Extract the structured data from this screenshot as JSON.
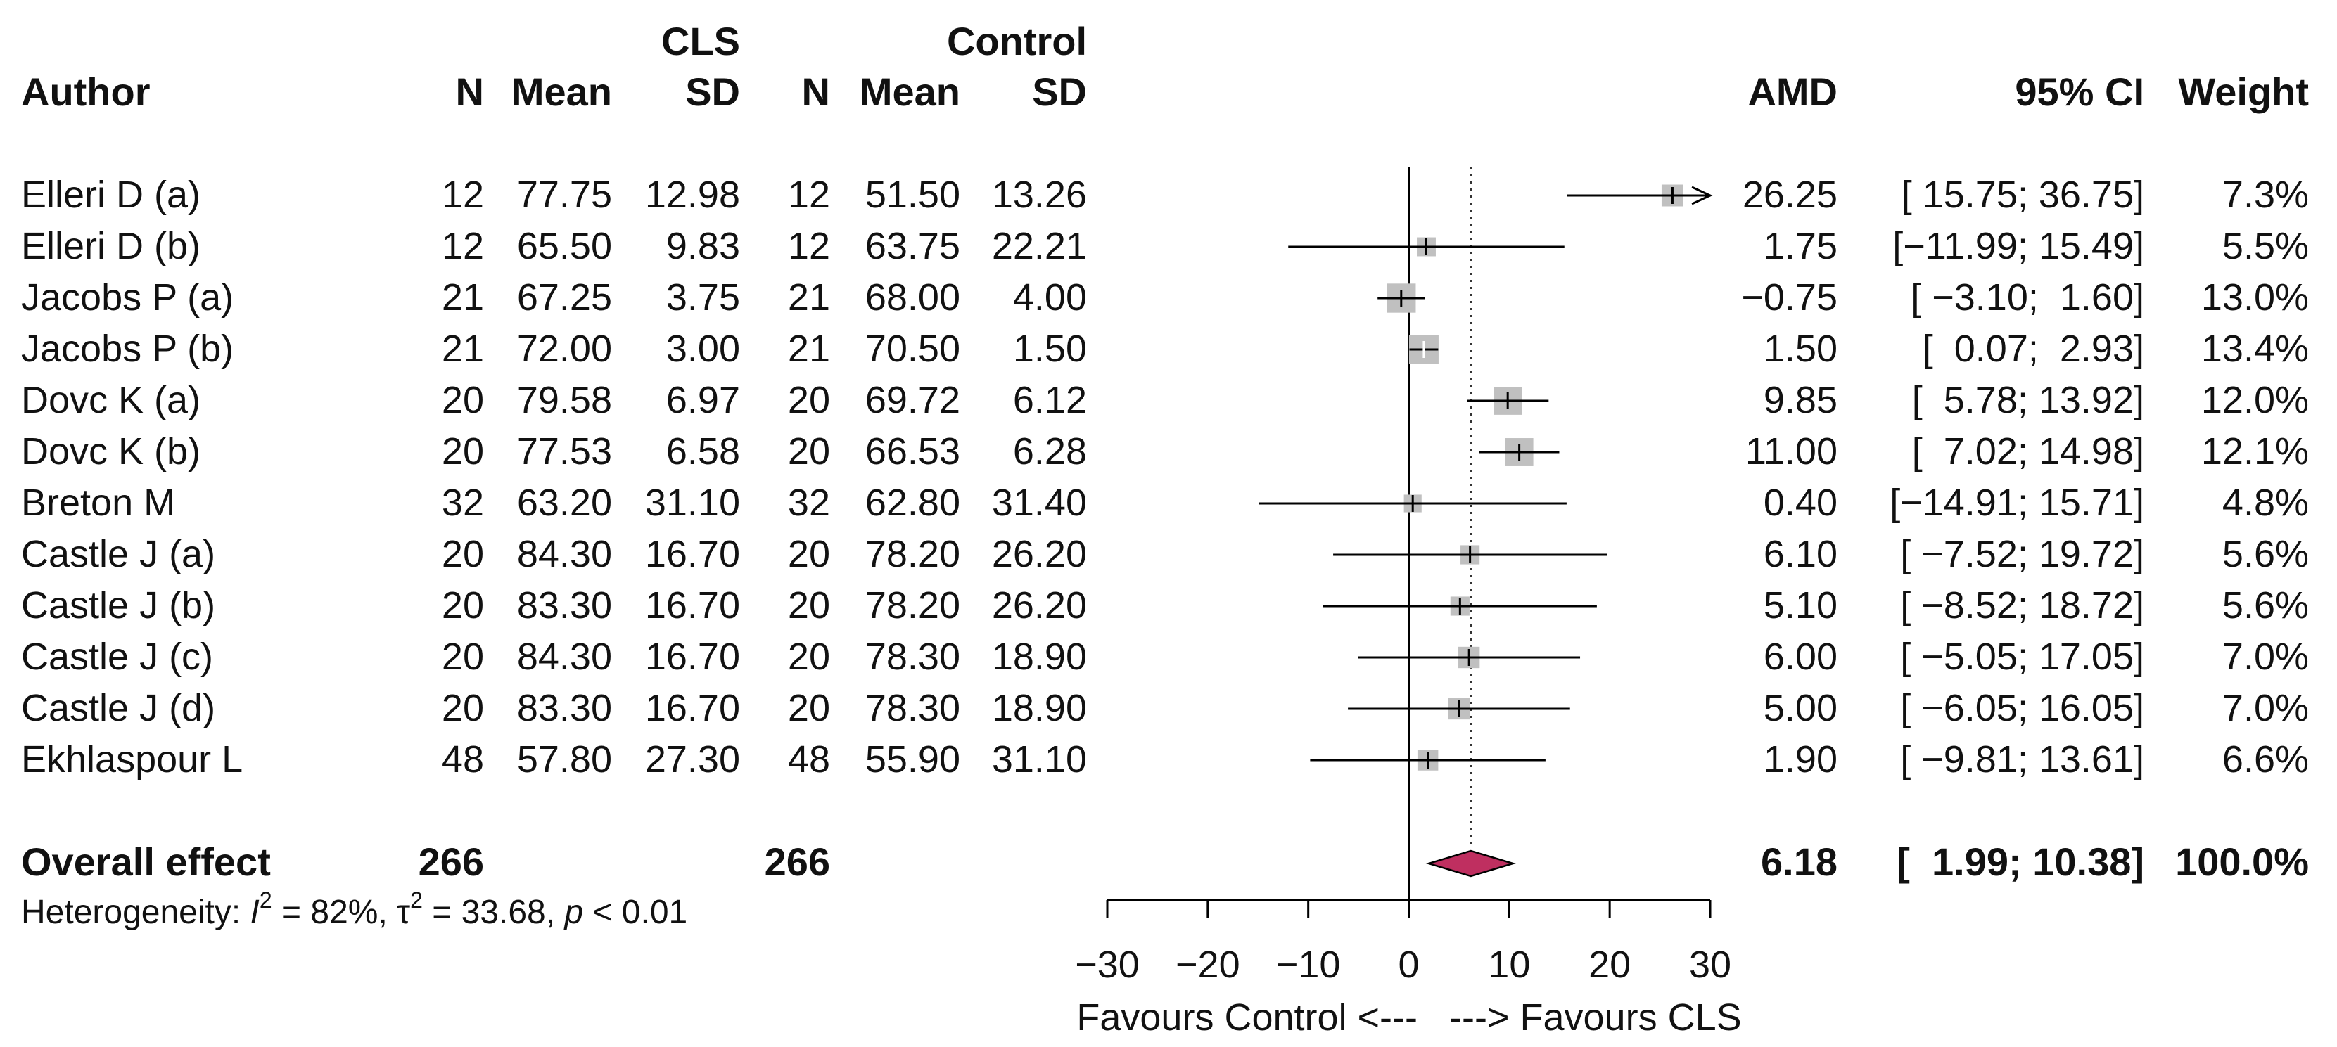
{
  "chart_data": {
    "type": "forest",
    "headers": {
      "group_cls": "CLS",
      "group_control": "Control",
      "author": "Author",
      "n": "N",
      "mean": "Mean",
      "sd": "SD",
      "amd": "AMD",
      "ci": "95% CI",
      "weight": "Weight"
    },
    "studies": [
      {
        "author": "Elleri D (a)",
        "n1": "12",
        "mean1": "77.75",
        "sd1": "12.98",
        "n2": "12",
        "mean2": "51.50",
        "sd2": "13.26",
        "amd": "26.25",
        "ci": "[ 15.75; 36.75]",
        "weight": "7.3%",
        "est": 26.25,
        "lo": 15.75,
        "hi": 36.75,
        "w": 7.3
      },
      {
        "author": "Elleri D (b)",
        "n1": "12",
        "mean1": "65.50",
        "sd1": "9.83",
        "n2": "12",
        "mean2": "63.75",
        "sd2": "22.21",
        "amd": "1.75",
        "ci": "[−11.99; 15.49]",
        "weight": "5.5%",
        "est": 1.75,
        "lo": -11.99,
        "hi": 15.49,
        "w": 5.5
      },
      {
        "author": "Jacobs P (a)",
        "n1": "21",
        "mean1": "67.25",
        "sd1": "3.75",
        "n2": "21",
        "mean2": "68.00",
        "sd2": "4.00",
        "amd": "−0.75",
        "ci": "[ −3.10;  1.60]",
        "weight": "13.0%",
        "est": -0.75,
        "lo": -3.1,
        "hi": 1.6,
        "w": 13.0
      },
      {
        "author": "Jacobs P (b)",
        "n1": "21",
        "mean1": "72.00",
        "sd1": "3.00",
        "n2": "21",
        "mean2": "70.50",
        "sd2": "1.50",
        "amd": "1.50",
        "ci": "[  0.07;  2.93]",
        "weight": "13.4%",
        "est": 1.5,
        "lo": 0.07,
        "hi": 2.93,
        "w": 13.4
      },
      {
        "author": "Dovc K (a)",
        "n1": "20",
        "mean1": "79.58",
        "sd1": "6.97",
        "n2": "20",
        "mean2": "69.72",
        "sd2": "6.12",
        "amd": "9.85",
        "ci": "[  5.78; 13.92]",
        "weight": "12.0%",
        "est": 9.85,
        "lo": 5.78,
        "hi": 13.92,
        "w": 12.0
      },
      {
        "author": "Dovc K (b)",
        "n1": "20",
        "mean1": "77.53",
        "sd1": "6.58",
        "n2": "20",
        "mean2": "66.53",
        "sd2": "6.28",
        "amd": "11.00",
        "ci": "[  7.02; 14.98]",
        "weight": "12.1%",
        "est": 11.0,
        "lo": 7.02,
        "hi": 14.98,
        "w": 12.1
      },
      {
        "author": "Breton M",
        "n1": "32",
        "mean1": "63.20",
        "sd1": "31.10",
        "n2": "32",
        "mean2": "62.80",
        "sd2": "31.40",
        "amd": "0.40",
        "ci": "[−14.91; 15.71]",
        "weight": "4.8%",
        "est": 0.4,
        "lo": -14.91,
        "hi": 15.71,
        "w": 4.8
      },
      {
        "author": "Castle J (a)",
        "n1": "20",
        "mean1": "84.30",
        "sd1": "16.70",
        "n2": "20",
        "mean2": "78.20",
        "sd2": "26.20",
        "amd": "6.10",
        "ci": "[ −7.52; 19.72]",
        "weight": "5.6%",
        "est": 6.1,
        "lo": -7.52,
        "hi": 19.72,
        "w": 5.6
      },
      {
        "author": "Castle J (b)",
        "n1": "20",
        "mean1": "83.30",
        "sd1": "16.70",
        "n2": "20",
        "mean2": "78.20",
        "sd2": "26.20",
        "amd": "5.10",
        "ci": "[ −8.52; 18.72]",
        "weight": "5.6%",
        "est": 5.1,
        "lo": -8.52,
        "hi": 18.72,
        "w": 5.6
      },
      {
        "author": "Castle J (c)",
        "n1": "20",
        "mean1": "84.30",
        "sd1": "16.70",
        "n2": "20",
        "mean2": "78.30",
        "sd2": "18.90",
        "amd": "6.00",
        "ci": "[ −5.05; 17.05]",
        "weight": "7.0%",
        "est": 6.0,
        "lo": -5.05,
        "hi": 17.05,
        "w": 7.0
      },
      {
        "author": "Castle J (d)",
        "n1": "20",
        "mean1": "83.30",
        "sd1": "16.70",
        "n2": "20",
        "mean2": "78.30",
        "sd2": "18.90",
        "amd": "5.00",
        "ci": "[ −6.05; 16.05]",
        "weight": "7.0%",
        "est": 5.0,
        "lo": -6.05,
        "hi": 16.05,
        "w": 7.0
      },
      {
        "author": "Ekhlaspour L",
        "n1": "48",
        "mean1": "57.80",
        "sd1": "27.30",
        "n2": "48",
        "mean2": "55.90",
        "sd2": "31.10",
        "amd": "1.90",
        "ci": "[ −9.81; 13.61]",
        "weight": "6.6%",
        "est": 1.9,
        "lo": -9.81,
        "hi": 13.61,
        "w": 6.6
      }
    ],
    "overall": {
      "label": "Overall effect",
      "n1": "266",
      "n2": "266",
      "amd": "6.18",
      "ci": "[  1.99; 10.38]",
      "weight": "100.0%",
      "est": 6.18,
      "lo": 1.99,
      "hi": 10.38
    },
    "heterogeneity": {
      "prefix": "Heterogeneity: ",
      "i2_symbol": "I",
      "i2_value": " = 82%, ",
      "tau_symbol": "τ",
      "tau_value": " = 33.68, ",
      "p_symbol": "p",
      "p_value": " < 0.01"
    },
    "x_axis": {
      "range": [
        -30,
        30
      ],
      "ticks": [
        -30,
        -20,
        -10,
        0,
        10,
        20,
        30
      ],
      "tick_labels": [
        "−30",
        "−20",
        "−10",
        "0",
        "10",
        "20",
        "30"
      ],
      "clip_max": 30,
      "label": "Favours Control <---   ---> Favours CLS"
    },
    "colors": {
      "square": "#c0c0c0",
      "diamond": "#bf2f60",
      "line": "#000000",
      "text": "#111111"
    }
  }
}
